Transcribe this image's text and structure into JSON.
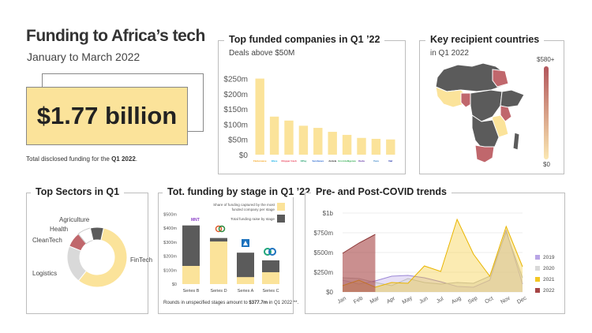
{
  "header": {
    "title": "Funding to Africa’s tech",
    "subtitle": "January to March 2022",
    "big_value": "$1.77 billion",
    "caption_pre": "Total disclosed funding for the ",
    "caption_bold": "Q1 2022",
    "caption_post": "."
  },
  "colors": {
    "yellow": "#fbe39a",
    "dark": "#5b5b5b",
    "light_gray": "#d9d9d9",
    "red": "#c0676c",
    "line_red": "#a64545",
    "purple": "#b9a5e6",
    "gold": "#f3c623"
  },
  "top_companies": {
    "title": "Top funded companies in Q1 ’22",
    "subtitle": "Deals above $50M",
    "chart_data": {
      "type": "bar",
      "categories": [
        "Flutterwave",
        "Wave",
        "Chipper Cash",
        "OPay",
        "Sendwave",
        "Andela",
        "Gro Intelligence",
        "Kuda",
        "Yoco",
        "Valr"
      ],
      "values": [
        250,
        125,
        112,
        95,
        88,
        75,
        65,
        55,
        52,
        50
      ],
      "ylim": [
        0,
        280
      ],
      "yticks": [
        0,
        50,
        100,
        150,
        200,
        250
      ],
      "ytick_labels": [
        "$0",
        "$50m",
        "$100m",
        "$150m",
        "$200m",
        "$250m"
      ]
    }
  },
  "countries": {
    "title": "Key recipient countries",
    "subtitle": "in Q1 2022",
    "legend_max": "$580+",
    "legend_min": "$0"
  },
  "sectors": {
    "title": "Top Sectors in Q1",
    "chart_data": {
      "type": "pie",
      "categories": [
        "FinTech",
        "Logistics",
        "CleanTech",
        "Health",
        "Agriculture"
      ],
      "values": [
        56,
        20,
        8,
        7,
        7
      ],
      "labels": [
        "FinTech",
        "Logistics",
        "CleanTech",
        "Health",
        "Agriculture"
      ]
    }
  },
  "stages": {
    "title": "Tot. funding by stage in Q1 ’22",
    "legend_share": "Share of funding captured by the most funded company per stage",
    "legend_total": "Total funding raise by stage",
    "logo_first": "MNT-Halan",
    "footnote_pre": "Rounds in unspecified stages amount to ",
    "footnote_bold": "$377.7m",
    "footnote_post": " in Q1 2022 **.",
    "chart_data": {
      "type": "bar",
      "categories": [
        "Series B",
        "Series D",
        "Series A",
        "Series C"
      ],
      "series": [
        {
          "name": "Total funding raise by stage",
          "values": [
            420,
            330,
            225,
            170
          ]
        },
        {
          "name": "Share of funding captured by the most funded company per stage",
          "values": [
            130,
            305,
            50,
            85
          ]
        }
      ],
      "ylim": [
        0,
        520
      ],
      "yticks": [
        0,
        100,
        200,
        300,
        400,
        500
      ],
      "ytick_labels": [
        "$0",
        "$100m",
        "$200m",
        "$300m",
        "$400m",
        "$500m"
      ]
    }
  },
  "trends": {
    "title": "Pre- and Post-COVID trends",
    "chart_data": {
      "type": "area",
      "x": [
        "Jan",
        "Feb",
        "Mar",
        "Apr",
        "May",
        "Jun",
        "Jul",
        "Aug",
        "Sep",
        "Oct",
        "Nov",
        "Dec"
      ],
      "ylim": [
        0,
        1000
      ],
      "yticks": [
        0,
        250,
        500,
        750,
        1000
      ],
      "ytick_labels": [
        "$0",
        "$250m",
        "$500m",
        "$750m",
        "$1b"
      ],
      "series": [
        {
          "name": "2019",
          "values": [
            150,
            100,
            140,
            200,
            210,
            180,
            130,
            70,
            60,
            150,
            780,
            100
          ]
        },
        {
          "name": "2020",
          "values": [
            180,
            170,
            120,
            80,
            170,
            120,
            100,
            120,
            110,
            200,
            760,
            180
          ]
        },
        {
          "name": "2021",
          "values": [
            80,
            150,
            60,
            120,
            110,
            330,
            260,
            920,
            480,
            200,
            830,
            320
          ]
        },
        {
          "name": "2022",
          "values": [
            490,
            620,
            730,
            null,
            null,
            null,
            null,
            null,
            null,
            null,
            null,
            null
          ]
        }
      ]
    }
  }
}
